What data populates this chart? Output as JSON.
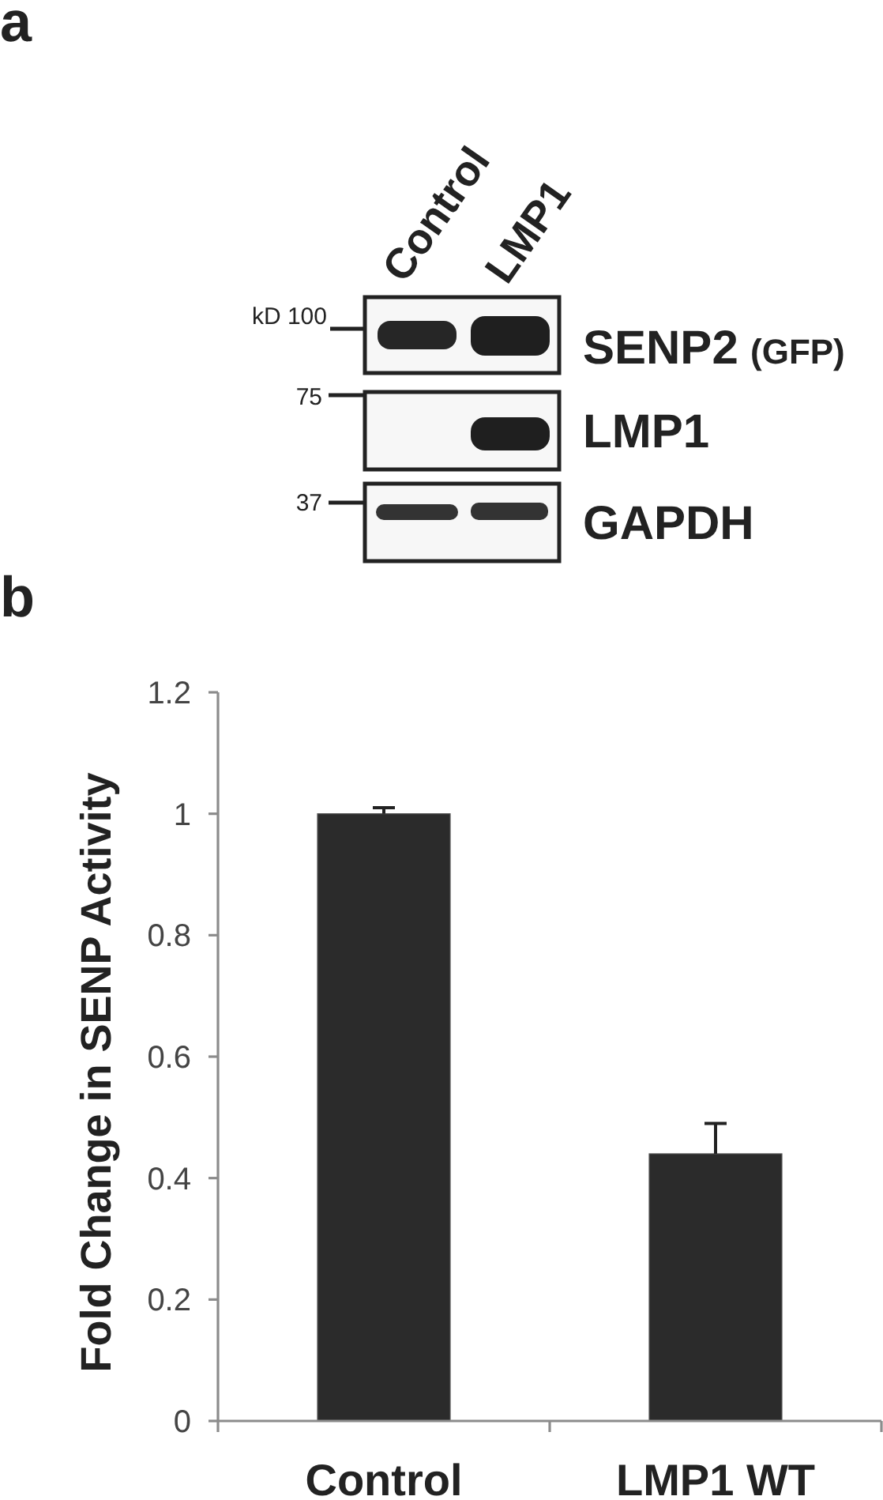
{
  "chart_data": [
    {
      "type": "other",
      "title": "a",
      "annotations": [
        "Control",
        "LMP1",
        "kD 100",
        "75",
        "37",
        "SENP2",
        "(GFP)",
        "LMP1",
        "GAPDH"
      ]
    },
    {
      "type": "bar",
      "title": "b",
      "categories": [
        "Control",
        "LMP1 WT"
      ],
      "values": [
        1,
        0.44
      ],
      "errors": [
        [
          1,
          1.01
        ],
        [
          0.44,
          0.49
        ]
      ],
      "color": "#2b2b2b",
      "ylabel": "Fold Change in SENP Activity",
      "ylim": [
        0,
        1.2
      ],
      "yticks": [
        0,
        0.2,
        0.4,
        0.6,
        0.8,
        1,
        1.2
      ]
    }
  ]
}
